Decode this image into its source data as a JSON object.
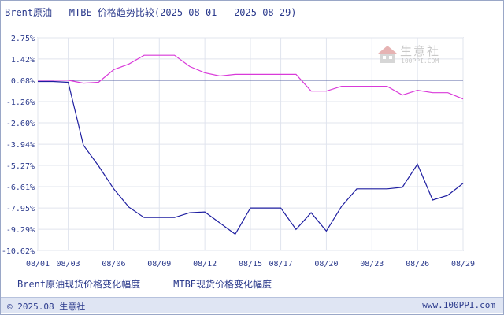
{
  "title": "Brent原油 - MTBE 价格趋势比较(2025-08-01 - 2025-08-29)",
  "watermark": {
    "name": "生意社",
    "url": "100PPI.COM"
  },
  "footer": {
    "left": "© 2025.08 生意社",
    "right": "www.100PPI.com"
  },
  "colors": {
    "brent": "#1e1ea0",
    "mtbe": "#d93ad9",
    "zero_line": "#2b3a8c",
    "grid": "#e0e4ee",
    "axis_text": "#2b3a8c"
  },
  "chart_data": {
    "type": "line",
    "title": "Brent原油 - MTBE 价格趋势比较(2025-08-01 - 2025-08-29)",
    "y_ticks": [
      "2.75%",
      "1.42%",
      "0.08%",
      "-1.26%",
      "-2.60%",
      "-3.94%",
      "-5.27%",
      "-6.61%",
      "-7.95%",
      "-9.29%",
      "-10.62%"
    ],
    "ylim": [
      -10.62,
      2.75
    ],
    "x_ticks": [
      "08/01",
      "08/03",
      "08/06",
      "08/09",
      "08/12",
      "08/15",
      "08/17",
      "08/20",
      "08/23",
      "08/26",
      "08/29"
    ],
    "xlim": [
      "08/01",
      "08/29"
    ],
    "grid": true,
    "series": [
      {
        "name": "Brent原油现货价格变化幅度",
        "points": [
          [
            "08/01",
            0.0
          ],
          [
            "08/02",
            0.0
          ],
          [
            "08/03",
            -0.05
          ],
          [
            "08/04",
            -4.0
          ],
          [
            "08/05",
            -5.3
          ],
          [
            "08/06",
            -6.75
          ],
          [
            "08/07",
            -7.9
          ],
          [
            "08/08",
            -8.55
          ],
          [
            "08/09",
            -8.55
          ],
          [
            "08/10",
            -8.55
          ],
          [
            "08/11",
            -8.25
          ],
          [
            "08/12",
            -8.2
          ],
          [
            "08/14",
            -9.6
          ],
          [
            "08/15",
            -7.95
          ],
          [
            "08/16",
            -7.95
          ],
          [
            "08/17",
            -7.95
          ],
          [
            "08/18",
            -9.3
          ],
          [
            "08/19",
            -8.25
          ],
          [
            "08/20",
            -9.4
          ],
          [
            "08/21",
            -7.85
          ],
          [
            "08/22",
            -6.75
          ],
          [
            "08/24",
            -6.75
          ],
          [
            "08/25",
            -6.65
          ],
          [
            "08/26",
            -5.2
          ],
          [
            "08/27",
            -7.45
          ],
          [
            "08/28",
            -7.15
          ],
          [
            "08/29",
            -6.4
          ]
        ]
      },
      {
        "name": "MTBE现货价格变化幅度",
        "points": [
          [
            "08/01",
            0.08
          ],
          [
            "08/02",
            0.08
          ],
          [
            "08/03",
            0.08
          ],
          [
            "08/04",
            -0.1
          ],
          [
            "08/05",
            -0.05
          ],
          [
            "08/06",
            0.75
          ],
          [
            "08/07",
            1.1
          ],
          [
            "08/08",
            1.65
          ],
          [
            "08/09",
            1.65
          ],
          [
            "08/10",
            1.65
          ],
          [
            "08/11",
            0.95
          ],
          [
            "08/12",
            0.55
          ],
          [
            "08/13",
            0.35
          ],
          [
            "08/14",
            0.45
          ],
          [
            "08/15",
            0.45
          ],
          [
            "08/17",
            0.45
          ],
          [
            "08/18",
            0.45
          ],
          [
            "08/19",
            -0.6
          ],
          [
            "08/20",
            -0.6
          ],
          [
            "08/21",
            -0.3
          ],
          [
            "08/22",
            -0.3
          ],
          [
            "08/24",
            -0.3
          ],
          [
            "08/25",
            -0.85
          ],
          [
            "08/26",
            -0.55
          ],
          [
            "08/27",
            -0.7
          ],
          [
            "08/28",
            -0.7
          ],
          [
            "08/29",
            -1.1
          ]
        ]
      }
    ]
  }
}
